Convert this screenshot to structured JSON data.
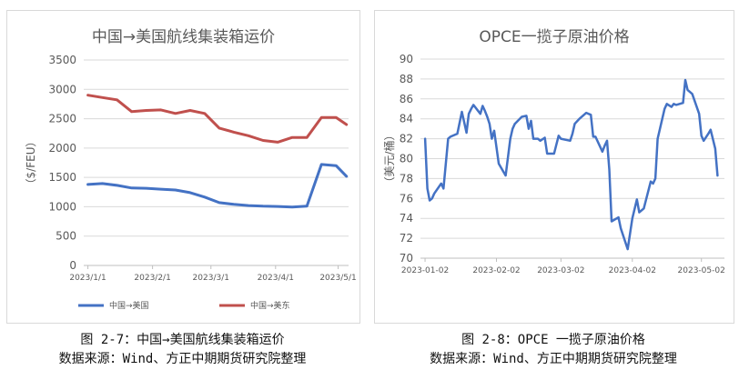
{
  "figures": [
    {
      "caption": "图 2-7：中国→美国航线集装箱运价",
      "source": "数据来源：Wind、方正中期期货研究院整理"
    },
    {
      "caption": "图 2-8：OPCE 一揽子原油价格",
      "source": "数据来源：Wind、方正中期期货研究院整理"
    }
  ],
  "chart_data": [
    {
      "type": "line",
      "title": "中国→美国航线集装箱运价",
      "ylabel": "（$/FEU）",
      "xlabel": "",
      "ylim": [
        0,
        3500
      ],
      "yticks": [
        0,
        500,
        1000,
        1500,
        2000,
        2500,
        3000,
        3500
      ],
      "x_ticklabels": [
        "2023/1/1",
        "2023/2/1",
        "2023/3/1",
        "2023/4/1",
        "2023/5/1"
      ],
      "x_tickvalues": [
        "2023-01-01",
        "2023-02-01",
        "2023-03-01",
        "2023-04-01",
        "2023-05-01"
      ],
      "xlim": [
        "2022-12-30",
        "2023-05-06"
      ],
      "grid": true,
      "legend_position": "bottom",
      "x": [
        "2023-01-01",
        "2023-01-08",
        "2023-01-15",
        "2023-01-22",
        "2023-01-29",
        "2023-02-05",
        "2023-02-12",
        "2023-02-19",
        "2023-02-26",
        "2023-03-05",
        "2023-03-12",
        "2023-03-19",
        "2023-03-26",
        "2023-04-02",
        "2023-04-09",
        "2023-04-16",
        "2023-04-23",
        "2023-04-30",
        "2023-05-05"
      ],
      "series": [
        {
          "name": "中国→美国",
          "color": "#4472c4",
          "values": [
            1380,
            1395,
            1365,
            1320,
            1315,
            1300,
            1285,
            1240,
            1165,
            1070,
            1040,
            1020,
            1010,
            1005,
            995,
            1010,
            1720,
            1700,
            1520
          ]
        },
        {
          "name": "中国→美东",
          "color": "#c0504d",
          "values": [
            2900,
            2860,
            2820,
            2620,
            2640,
            2650,
            2590,
            2640,
            2590,
            2340,
            2270,
            2210,
            2130,
            2100,
            2180,
            2180,
            2520,
            2520,
            2400
          ]
        }
      ]
    },
    {
      "type": "line",
      "title": "OPCE一揽子原油价格",
      "ylabel": "（美元/桶）",
      "xlabel": "",
      "ylim": [
        70,
        90
      ],
      "yticks": [
        70,
        72,
        74,
        76,
        78,
        80,
        82,
        84,
        86,
        88,
        90
      ],
      "x_ticklabels": [
        "2023-01-02",
        "2023-02-02",
        "2023-03-02",
        "2023-04-02",
        "2023-05-02"
      ],
      "x_tickvalues": [
        "2023-01-02",
        "2023-02-02",
        "2023-03-02",
        "2023-04-02",
        "2023-05-02"
      ],
      "xlim": [
        "2022-12-31",
        "2023-05-12"
      ],
      "grid": true,
      "x": [
        "2023-01-02",
        "2023-01-03",
        "2023-01-04",
        "2023-01-05",
        "2023-01-06",
        "2023-01-09",
        "2023-01-10",
        "2023-01-12",
        "2023-01-13",
        "2023-01-16",
        "2023-01-18",
        "2023-01-20",
        "2023-01-21",
        "2023-01-22",
        "2023-01-23",
        "2023-01-26",
        "2023-01-27",
        "2023-01-28",
        "2023-01-29",
        "2023-01-30",
        "2023-01-31",
        "2023-02-01",
        "2023-02-03",
        "2023-02-06",
        "2023-02-08",
        "2023-02-09",
        "2023-02-10",
        "2023-02-13",
        "2023-02-15",
        "2023-02-16",
        "2023-02-17",
        "2023-02-18",
        "2023-02-20",
        "2023-02-21",
        "2023-02-23",
        "2023-02-24",
        "2023-02-27",
        "2023-03-01",
        "2023-03-02",
        "2023-03-06",
        "2023-03-07",
        "2023-03-08",
        "2023-03-10",
        "2023-03-13",
        "2023-03-15",
        "2023-03-16",
        "2023-03-17",
        "2023-03-20",
        "2023-03-21",
        "2023-03-22",
        "2023-03-23",
        "2023-03-24",
        "2023-03-27",
        "2023-03-28",
        "2023-03-31",
        "2023-04-02",
        "2023-04-04",
        "2023-04-05",
        "2023-04-07",
        "2023-04-10",
        "2023-04-11",
        "2023-04-12",
        "2023-04-13",
        "2023-04-16",
        "2023-04-17",
        "2023-04-19",
        "2023-04-20",
        "2023-04-21",
        "2023-04-24",
        "2023-04-25",
        "2023-04-26",
        "2023-04-27",
        "2023-04-28",
        "2023-05-01",
        "2023-05-02",
        "2023-05-03",
        "2023-05-05",
        "2023-05-06",
        "2023-05-08",
        "2023-05-09"
      ],
      "series": [
        {
          "name": "OPCE一揽子原油价格",
          "color": "#4472c4",
          "values": [
            82.0,
            77.0,
            75.8,
            76.0,
            76.5,
            77.5,
            77.0,
            82.0,
            82.2,
            82.5,
            84.7,
            82.6,
            84.5,
            85.0,
            85.4,
            84.5,
            85.3,
            84.8,
            84.2,
            83.5,
            82.0,
            82.8,
            79.5,
            78.3,
            82.0,
            83.0,
            83.5,
            84.2,
            84.3,
            83.0,
            83.8,
            82.0,
            82.0,
            81.8,
            82.1,
            80.5,
            80.5,
            82.3,
            82.0,
            81.8,
            82.5,
            83.5,
            84.0,
            84.6,
            84.4,
            82.2,
            82.2,
            80.7,
            81.3,
            81.8,
            78.9,
            73.7,
            74.1,
            73.0,
            70.9,
            74.0,
            75.9,
            74.6,
            75.0,
            77.7,
            77.5,
            78.0,
            82.0,
            85.0,
            85.5,
            85.2,
            85.5,
            85.4,
            85.6,
            87.9,
            86.9,
            86.7,
            86.5,
            84.5,
            82.3,
            81.8,
            82.5,
            82.9,
            81.0,
            78.3
          ]
        }
      ]
    }
  ]
}
